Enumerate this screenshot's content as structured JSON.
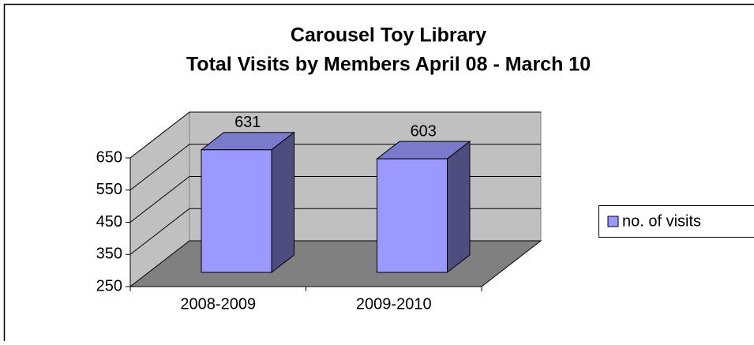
{
  "chart_data": {
    "type": "bar3d",
    "title": "Carousel Toy Library",
    "subtitle": "Total Visits by Members April 08 - March 10",
    "categories": [
      "2008-2009",
      "2009-2010"
    ],
    "series": [
      {
        "name": "no. of visits",
        "color": "#9999ff",
        "values": [
          631,
          603
        ]
      }
    ],
    "ylim": [
      250,
      650
    ],
    "yticks": [
      250,
      350,
      450,
      550,
      650
    ],
    "grid": true,
    "legend": "right"
  }
}
